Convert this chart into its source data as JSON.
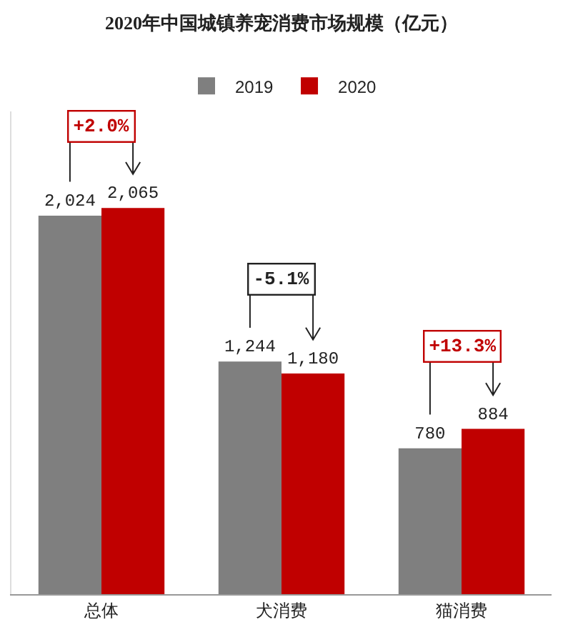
{
  "chart_data": {
    "type": "bar",
    "title": "2020年中国城镇养宠消费市场规模（亿元）",
    "categories": [
      "总体",
      "犬消费",
      "猫消费"
    ],
    "series": [
      {
        "name": "2019",
        "color": "#7f7f7f",
        "values": [
          2024,
          1244,
          780
        ],
        "value_labels": [
          "2,024",
          "1,244",
          "780"
        ]
      },
      {
        "name": "2020",
        "color": "#c00000",
        "values": [
          2065,
          1180,
          884
        ],
        "value_labels": [
          "2,065",
          "1,180",
          "884"
        ]
      }
    ],
    "legend": "top",
    "annotations": [
      "+2.0%",
      "-5.1%",
      "+13.3%"
    ]
  }
}
